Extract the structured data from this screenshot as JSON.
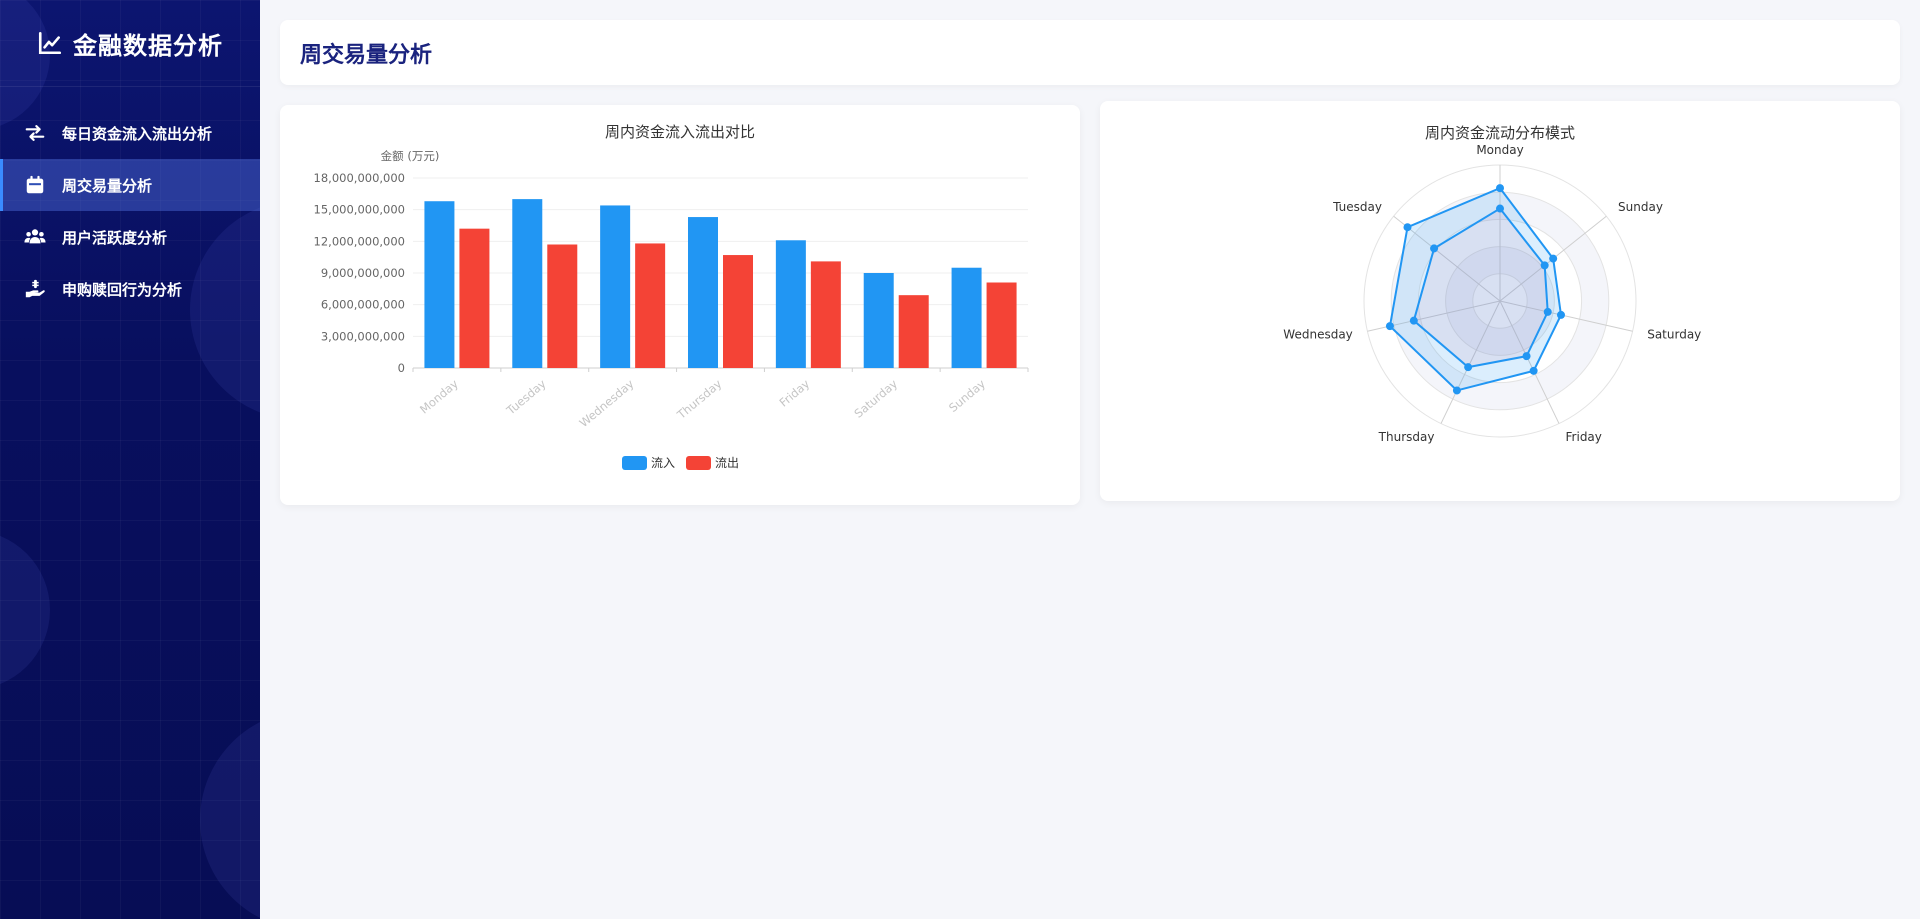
{
  "sidebar": {
    "title": "金融数据分析",
    "brand_icon": "line-chart-icon",
    "items": [
      {
        "label": "每日资金流入流出分析",
        "icon": "exchange-arrows-icon",
        "active": false
      },
      {
        "label": "周交易量分析",
        "icon": "calendar-icon",
        "active": true
      },
      {
        "label": "用户活跃度分析",
        "icon": "users-icon",
        "active": false
      },
      {
        "label": "申购赎回行为分析",
        "icon": "hand-money-icon",
        "active": false
      }
    ]
  },
  "header": {
    "title": "周交易量分析"
  },
  "colors": {
    "inflow": "#2196f3",
    "outflow": "#f44336",
    "accent": "#1a237e"
  },
  "chart_data": [
    {
      "type": "bar",
      "title": "周内资金流入流出对比",
      "ylabel": "金额 (万元)",
      "categories": [
        "Monday",
        "Tuesday",
        "Wednesday",
        "Thursday",
        "Friday",
        "Saturday",
        "Sunday"
      ],
      "ylim": [
        0,
        18000000000
      ],
      "yticks": [
        "0",
        "3,000,000,000",
        "6,000,000,000",
        "9,000,000,000",
        "12,000,000,000",
        "15,000,000,000",
        "18,000,000,000"
      ],
      "series": [
        {
          "name": "流入",
          "values": [
            15800000000,
            16000000000,
            15400000000,
            14300000000,
            12100000000,
            9000000000,
            9500000000
          ]
        },
        {
          "name": "流出",
          "values": [
            13200000000,
            11700000000,
            11800000000,
            10700000000,
            10100000000,
            6900000000,
            8100000000
          ]
        }
      ],
      "legend": "bottom-center"
    },
    {
      "type": "radar",
      "title": "周内资金流动分布模式",
      "indicators": [
        "Monday",
        "Sunday",
        "Saturday",
        "Friday",
        "Thursday",
        "Wednesday",
        "Tuesday"
      ],
      "series": [
        {
          "values": [
            0.83,
            0.5,
            0.46,
            0.57,
            0.73,
            0.83,
            0.87
          ]
        },
        {
          "values": [
            0.68,
            0.42,
            0.36,
            0.45,
            0.54,
            0.65,
            0.62
          ]
        }
      ]
    }
  ]
}
